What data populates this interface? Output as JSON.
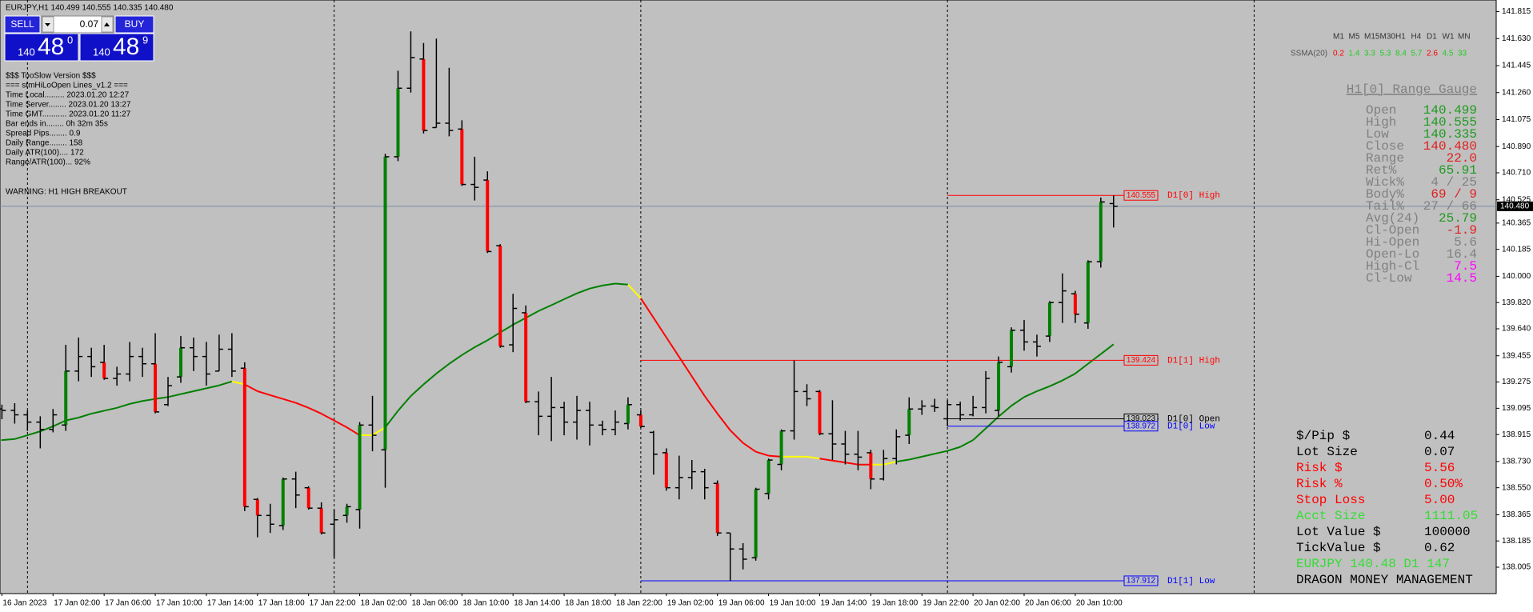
{
  "header": "EURJPY,H1  140.499 140.555 140.335 140.480",
  "trade_panel": {
    "sell": "SELL",
    "buy": "BUY",
    "lot": "0.07",
    "bid": {
      "big": "140",
      "pips": "48",
      "point": "0"
    },
    "ask": {
      "big": "140",
      "pips": "48",
      "point": "9"
    }
  },
  "info_lines": [
    "$$$ TooSlow Version $$$",
    "=== stmHiLoOpen Lines_v1.2 ===",
    "Time Local......... 2023.01.20 12:27",
    "Time Server........ 2023.01.20 13:27",
    "Time GMT........... 2023.01.20 11:27",
    "Bar ends in........ 0h 32m 35s",
    "Spread Pips........ 0.9",
    "Daily Range........ 158",
    "Daily ATR(100).... 172",
    "Range/ATR(100)... 92%"
  ],
  "warning": "WARNING: H1 HIGH BREAKOUT",
  "timeframes": [
    "M1",
    "M5",
    "M15",
    "M30",
    "H1",
    "H4",
    "D1",
    "W1",
    "MN"
  ],
  "ssma": {
    "label": "SSMA(20)",
    "values": [
      {
        "text": "0.2",
        "color": "#ff0000"
      },
      {
        "text": "1.4",
        "color": "#22cc22"
      },
      {
        "text": "3.3",
        "color": "#22cc22"
      },
      {
        "text": "5.3",
        "color": "#22cc22"
      },
      {
        "text": "8.4",
        "color": "#22cc22"
      },
      {
        "text": "5.7",
        "color": "#22cc22"
      },
      {
        "text": "2.6",
        "color": "#ff0000"
      },
      {
        "text": "4.5",
        "color": "#22cc22"
      },
      {
        "text": "33",
        "color": "#22cc22"
      }
    ]
  },
  "gauge": {
    "title": "H1[0] Range Gauge",
    "rows": [
      {
        "label": "Open",
        "value": "140.499",
        "color": "#1f9a1f"
      },
      {
        "label": "High",
        "value": "140.555",
        "color": "#1f9a1f"
      },
      {
        "label": "Low",
        "value": "140.335",
        "color": "#1f9a1f"
      },
      {
        "label": "Close",
        "value": "140.480",
        "color": "#e02020"
      },
      {
        "label": "Range",
        "value": "22.0",
        "color": "#e02020"
      },
      {
        "label": "Ret%",
        "value": "65.91",
        "color": "#1f9a1f"
      },
      {
        "label": "Wick%",
        "value": "4 / 25",
        "color": "#808080"
      },
      {
        "label": "Body%",
        "value": "69 / 9",
        "color": "#e02020"
      },
      {
        "label": "Tail%",
        "value": "27 / 66",
        "color": "#808080"
      },
      {
        "label": "Avg(24)",
        "value": "25.79",
        "color": "#1f9a1f"
      },
      {
        "label": "Cl-Open",
        "value": "-1.9",
        "color": "#e02020"
      },
      {
        "label": "Hi-Open",
        "value": "5.6",
        "color": "#808080"
      },
      {
        "label": "Open-Lo",
        "value": "16.4",
        "color": "#808080"
      },
      {
        "label": "High-Cl",
        "value": "7.5",
        "color": "#ff00ff"
      },
      {
        "label": "Cl-Low",
        "value": "14.5",
        "color": "#ff00ff"
      }
    ]
  },
  "money": {
    "rows": [
      {
        "label": "$/Pip $",
        "value": "0.44",
        "color": "#000000"
      },
      {
        "label": "Lot Size",
        "value": "0.07",
        "color": "#000000"
      },
      {
        "label": "Risk $",
        "value": "5.56",
        "color": "#ff0000"
      },
      {
        "label": "Risk %",
        "value": "0.50%",
        "color": "#ff0000"
      },
      {
        "label": "Stop Loss",
        "value": "5.00",
        "color": "#ff0000"
      },
      {
        "label": "Acct Size",
        "value": "1111.05",
        "color": "#33dd33"
      },
      {
        "label": "Lot Value $",
        "value": "100000",
        "color": "#000000"
      },
      {
        "label": "TickValue $",
        "value": "0.62",
        "color": "#000000"
      }
    ],
    "footer": [
      {
        "text": "EURJPY 140.48 D1 147",
        "color": "#33dd33"
      },
      {
        "text": "DRAGON MONEY MANAGEMENT",
        "color": "#000000"
      }
    ]
  },
  "chart_data": {
    "type": "ohlc",
    "categories": [
      "16 Jan 2023",
      null,
      null,
      null,
      "17 Jan 02:00",
      null,
      null,
      null,
      "17 Jan 06:00",
      null,
      null,
      null,
      "17 Jan 10:00",
      null,
      null,
      null,
      "17 Jan 14:00",
      null,
      null,
      null,
      "17 Jan 18:00",
      null,
      null,
      null,
      "17 Jan 22:00",
      null,
      null,
      null,
      "18 Jan 02:00",
      null,
      null,
      null,
      "18 Jan 06:00",
      null,
      null,
      null,
      "18 Jan 10:00",
      null,
      null,
      null,
      "18 Jan 14:00",
      null,
      null,
      null,
      "18 Jan 18:00",
      null,
      null,
      null,
      "18 Jan 22:00",
      null,
      null,
      null,
      "19 Jan 02:00",
      null,
      null,
      null,
      "19 Jan 06:00",
      null,
      null,
      null,
      "19 Jan 10:00",
      null,
      null,
      null,
      "19 Jan 14:00",
      null,
      null,
      null,
      "19 Jan 18:00",
      null,
      null,
      null,
      "19 Jan 22:00",
      null,
      null,
      null,
      "20 Jan 02:00",
      null,
      null,
      null,
      "20 Jan 06:00",
      null,
      null,
      null,
      "20 Jan 10:00",
      null,
      null,
      null
    ],
    "open": [
      139.09,
      139.08,
      139.05,
      139.0,
      138.95,
      138.98,
      139.35,
      139.45,
      139.41,
      139.3,
      139.33,
      139.45,
      139.4,
      139.12,
      139.31,
      139.51,
      139.45,
      139.35,
      139.5,
      139.37,
      138.47,
      138.36,
      138.29,
      138.61,
      138.55,
      138.41,
      138.3,
      138.36,
      138.4,
      138.98,
      138.81,
      140.82,
      141.29,
      141.49,
      141.02,
      141.05,
      141.01,
      140.63,
      140.66,
      140.21,
      139.53,
      139.75,
      139.14,
      139.04,
      139.1,
      139.0,
      139.08,
      138.98,
      138.95,
      138.99,
      139.05,
      138.93,
      138.79,
      138.55,
      138.62,
      138.66,
      138.58,
      138.24,
      138.13,
      138.07,
      138.51,
      138.71,
      138.94,
      139.21,
      139.21,
      138.92,
      138.85,
      138.78,
      138.79,
      138.61,
      138.75,
      138.91,
      139.09,
      139.11,
      139.023,
      139.12,
      139.05,
      139.1,
      139.08,
      139.38,
      139.63,
      139.55,
      139.59,
      139.82,
      139.88,
      139.68,
      140.1,
      140.499
    ],
    "high": [
      139.12,
      139.13,
      139.08,
      139.04,
      139.09,
      139.53,
      139.58,
      139.51,
      139.53,
      139.38,
      139.55,
      139.51,
      139.61,
      139.31,
      139.59,
      139.58,
      139.55,
      139.6,
      139.61,
      139.41,
      138.48,
      138.44,
      138.62,
      138.66,
      138.56,
      138.45,
      138.4,
      138.44,
      139.0,
      139.18,
      140.84,
      141.41,
      141.68,
      141.6,
      141.63,
      141.43,
      141.07,
      140.82,
      140.72,
      140.22,
      139.88,
      139.8,
      139.21,
      139.31,
      139.14,
      139.18,
      139.14,
      139.01,
      139.08,
      139.17,
      139.08,
      138.94,
      138.82,
      138.77,
      138.74,
      138.68,
      138.6,
      138.24,
      138.17,
      138.55,
      138.75,
      138.95,
      139.424,
      139.26,
      139.22,
      139.15,
      138.94,
      138.94,
      138.81,
      138.81,
      138.95,
      139.17,
      139.15,
      139.16,
      139.15,
      139.14,
      139.18,
      139.35,
      139.45,
      139.65,
      139.7,
      139.6,
      139.83,
      140.02,
      139.9,
      140.11,
      140.54,
      140.555
    ],
    "low": [
      139.02,
      138.99,
      138.94,
      138.82,
      138.93,
      138.94,
      139.28,
      139.31,
      139.29,
      139.25,
      139.28,
      139.31,
      139.06,
      139.11,
      139.27,
      139.35,
      139.25,
      139.35,
      139.31,
      138.39,
      138.21,
      138.24,
      138.26,
      138.41,
      138.4,
      138.23,
      138.07,
      138.31,
      138.27,
      138.8,
      138.55,
      140.79,
      141.26,
      140.98,
      141.02,
      140.96,
      140.62,
      140.52,
      140.16,
      139.51,
      139.48,
      139.13,
      138.91,
      138.87,
      138.91,
      138.88,
      138.84,
      138.91,
      138.91,
      138.95,
      138.96,
      138.64,
      138.53,
      138.47,
      138.54,
      138.47,
      138.22,
      137.912,
      137.99,
      138.05,
      138.47,
      138.67,
      138.88,
      139.11,
      138.91,
      138.74,
      138.71,
      138.67,
      138.54,
      138.6,
      138.71,
      138.85,
      139.05,
      139.07,
      138.972,
      139.01,
      139.04,
      139.06,
      139.04,
      139.34,
      139.49,
      139.45,
      139.55,
      139.68,
      139.68,
      139.64,
      140.06,
      140.335
    ],
    "close": [
      139.08,
      139.05,
      139.0,
      138.95,
      139.05,
      139.35,
      139.45,
      139.38,
      139.3,
      139.33,
      139.45,
      139.4,
      139.07,
      139.25,
      139.51,
      139.45,
      139.33,
      139.5,
      139.35,
      138.42,
      138.36,
      138.3,
      138.61,
      138.5,
      138.41,
      138.24,
      138.33,
      138.42,
      138.98,
      138.91,
      140.82,
      141.29,
      141.5,
      141.0,
      141.05,
      141.0,
      140.63,
      140.61,
      140.17,
      139.52,
      139.78,
      139.14,
      139.04,
      139.1,
      139.0,
      139.08,
      138.98,
      138.95,
      139.0,
      139.12,
      138.97,
      138.78,
      138.55,
      138.62,
      138.66,
      138.55,
      138.24,
      138.13,
      138.06,
      138.54,
      138.74,
      138.94,
      139.21,
      139.16,
      138.92,
      138.85,
      138.78,
      138.76,
      138.61,
      138.75,
      138.9,
      139.09,
      139.11,
      139.1,
      139.12,
      139.05,
      139.1,
      139.3,
      139.41,
      139.63,
      139.55,
      139.52,
      139.82,
      139.9,
      139.74,
      140.1,
      140.51,
      140.48
    ],
    "bar_colors": [
      "#000000",
      "#000000",
      "#000000",
      "#000000",
      "#000000",
      "#008000",
      "#000000",
      "#000000",
      "#ff0000",
      "#000000",
      "#000000",
      "#000000",
      "#ff0000",
      "#000000",
      "#008000",
      "#000000",
      "#000000",
      "#000000",
      "#000000",
      "#ff0000",
      "#ff0000",
      "#000000",
      "#008000",
      "#000000",
      "#ff0000",
      "#ff0000",
      "#000000",
      "#008000",
      "#008000",
      "#000000",
      "#008000",
      "#008000",
      "#000000",
      "#ff0000",
      "#000000",
      "#000000",
      "#ff0000",
      "#000000",
      "#ff0000",
      "#ff0000",
      "#000000",
      "#ff0000",
      "#000000",
      "#000000",
      "#000000",
      "#000000",
      "#000000",
      "#000000",
      "#000000",
      "#008000",
      "#ff0000",
      "#000000",
      "#ff0000",
      "#000000",
      "#000000",
      "#000000",
      "#ff0000",
      "#000000",
      "#000000",
      "#008000",
      "#008000",
      "#008000",
      "#000000",
      "#000000",
      "#ff0000",
      "#000000",
      "#000000",
      "#000000",
      "#ff0000",
      "#000000",
      "#000000",
      "#008000",
      "#000000",
      "#000000",
      "#000000",
      "#000000",
      "#000000",
      "#000000",
      "#008000",
      "#008000",
      "#000000",
      "#000000",
      "#008000",
      "#000000",
      "#ff0000",
      "#008000",
      "#008000",
      "#000000"
    ],
    "ma": [
      138.877,
      138.884,
      138.91,
      138.937,
      138.971,
      139.011,
      139.031,
      139.058,
      139.078,
      139.098,
      139.125,
      139.145,
      139.159,
      139.172,
      139.192,
      139.212,
      139.232,
      139.252,
      139.279,
      139.259,
      139.212,
      139.185,
      139.159,
      139.132,
      139.098,
      139.058,
      139.011,
      138.964,
      138.91,
      138.91,
      138.964,
      139.078,
      139.179,
      139.259,
      139.333,
      139.4,
      139.46,
      139.514,
      139.561,
      139.615,
      139.668,
      139.715,
      139.762,
      139.802,
      139.843,
      139.883,
      139.916,
      139.937,
      139.95,
      139.943,
      139.849,
      139.715,
      139.581,
      139.447,
      139.313,
      139.179,
      139.058,
      138.944,
      138.857,
      138.797,
      138.77,
      138.763,
      138.763,
      138.763,
      138.75,
      138.736,
      138.723,
      138.709,
      138.709,
      138.709,
      138.729,
      138.743,
      138.763,
      138.783,
      138.803,
      138.83,
      138.877,
      138.957,
      139.038,
      139.112,
      139.172,
      139.212,
      139.246,
      139.286,
      139.333,
      139.4,
      139.467,
      139.534
    ],
    "ma_colors": [
      "#008000",
      "#008000",
      "#008000",
      "#008000",
      "#008000",
      "#008000",
      "#008000",
      "#008000",
      "#008000",
      "#008000",
      "#008000",
      "#008000",
      "#008000",
      "#008000",
      "#008000",
      "#008000",
      "#008000",
      "#008000",
      "#008000",
      "#ffff00",
      "#ff0000",
      "#ff0000",
      "#ff0000",
      "#ff0000",
      "#ff0000",
      "#ff0000",
      "#ff0000",
      "#ff0000",
      "#ff0000",
      "#ffff00",
      "#ffff00",
      "#008000",
      "#008000",
      "#008000",
      "#008000",
      "#008000",
      "#008000",
      "#008000",
      "#008000",
      "#008000",
      "#008000",
      "#008000",
      "#008000",
      "#008000",
      "#008000",
      "#008000",
      "#008000",
      "#008000",
      "#008000",
      "#008000",
      "#ffff00",
      "#ff0000",
      "#ff0000",
      "#ff0000",
      "#ff0000",
      "#ff0000",
      "#ff0000",
      "#ff0000",
      "#ff0000",
      "#ff0000",
      "#ff0000",
      "#ff0000",
      "#ffff00",
      "#ffff00",
      "#ffff00",
      "#ff0000",
      "#ff0000",
      "#ff0000",
      "#ff0000",
      "#ffff00",
      "#ffff00",
      "#008000",
      "#008000",
      "#008000",
      "#008000",
      "#008000",
      "#008000",
      "#008000",
      "#008000",
      "#008000",
      "#008000",
      "#008000",
      "#008000",
      "#008000",
      "#008000",
      "#008000",
      "#008000",
      "#008000"
    ],
    "separators": [
      2,
      26,
      50,
      74,
      98
    ],
    "levels": [
      {
        "name": "D1[0] High",
        "value": 140.555,
        "value_label": "140.555",
        "color": "#ff0000",
        "from": 74
      },
      {
        "name": "D1[1] High",
        "value": 139.424,
        "value_label": "139.424",
        "color": "#ff0000",
        "from": 50
      },
      {
        "name": "D1[0] Open",
        "value": 139.023,
        "value_label": "139.023",
        "color": "#000000",
        "from": 74
      },
      {
        "name": "D1[0] Low",
        "value": 138.972,
        "value_label": "138.972",
        "color": "#0000ff",
        "from": 74
      },
      {
        "name": "D1[1] Low",
        "value": 137.912,
        "value_label": "137.912",
        "color": "#0000ff",
        "from": 50
      }
    ],
    "current": {
      "value": 140.48,
      "label": "140.480"
    },
    "ylim": [
      137.824,
      141.895
    ],
    "yticks": [
      {
        "value": 141.815,
        "label": "141.815"
      },
      {
        "value": 141.63,
        "label": "141.630"
      },
      {
        "value": 141.445,
        "label": "141.445"
      },
      {
        "value": 141.26,
        "label": "141.260"
      },
      {
        "value": 141.075,
        "label": "141.075"
      },
      {
        "value": 140.89,
        "label": "140.890"
      },
      {
        "value": 140.71,
        "label": "140.710"
      },
      {
        "value": 140.525,
        "label": "140.525"
      },
      {
        "value": 140.365,
        "label": "140.365"
      },
      {
        "value": 140.185,
        "label": "140.185"
      },
      {
        "value": 140.0,
        "label": "140.000"
      },
      {
        "value": 139.82,
        "label": "139.820"
      },
      {
        "value": 139.64,
        "label": "139.640"
      },
      {
        "value": 139.455,
        "label": "139.455"
      },
      {
        "value": 139.275,
        "label": "139.275"
      },
      {
        "value": 139.095,
        "label": "139.095"
      },
      {
        "value": 138.915,
        "label": "138.915"
      },
      {
        "value": 138.73,
        "label": "138.730"
      },
      {
        "value": 138.55,
        "label": "138.550"
      },
      {
        "value": 138.365,
        "label": "138.365"
      },
      {
        "value": 138.185,
        "label": "138.185"
      },
      {
        "value": 138.005,
        "label": "138.005"
      }
    ]
  }
}
